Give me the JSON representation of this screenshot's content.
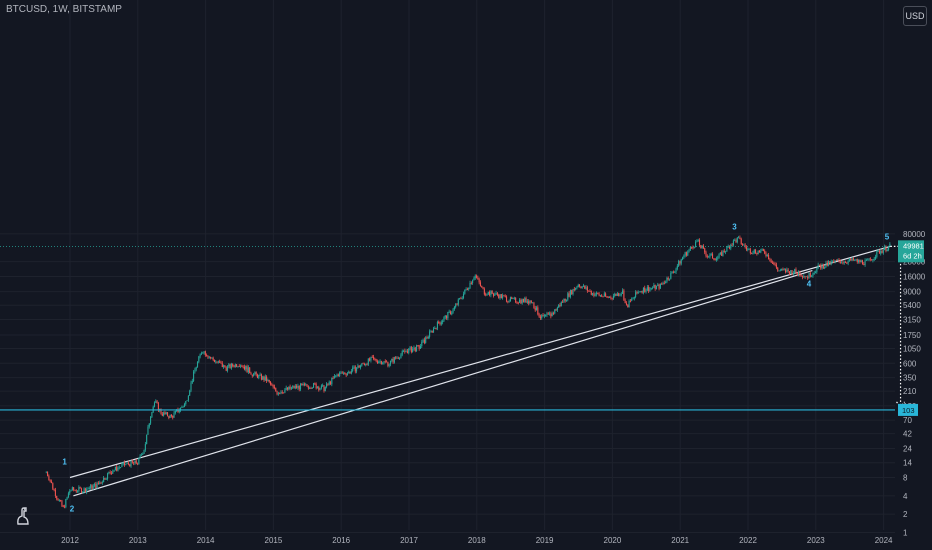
{
  "symbol": "BTCUSD, 1W, BITSTAMP",
  "currency_button": "USD",
  "colors": {
    "background": "#131722",
    "grid": "#1e222d",
    "up": "#26a69a",
    "down": "#ef5350",
    "price_line": "#26a69a",
    "target_line": "#29b6d8",
    "wave_label": "#4fc3f7",
    "channel": "#e0e3eb"
  },
  "chart_data": {
    "type": "candlestick",
    "y_scale": "log",
    "y_axis_labels": [
      "80000",
      "49981",
      "28000",
      "16000",
      "9000",
      "5400",
      "3150",
      "1750",
      "1050",
      "600",
      "350",
      "210",
      "120",
      "103",
      "70",
      "42",
      "24",
      "14",
      "8",
      "4",
      "2",
      "1"
    ],
    "x_axis_labels": [
      "2012",
      "2013",
      "2014",
      "2015",
      "2016",
      "2017",
      "2018",
      "2019",
      "2020",
      "2021",
      "2022",
      "2023",
      "2024"
    ],
    "last_price": {
      "value": "49981",
      "countdown": "6d 2h"
    },
    "target_price": {
      "value": "103"
    },
    "wave_labels": [
      {
        "label": "1",
        "date": "2011.92",
        "price": 13
      },
      {
        "label": "2",
        "date": "2012.03",
        "price": 2.2
      },
      {
        "label": "3",
        "date": "2021.80",
        "price": 95000
      },
      {
        "label": "4",
        "date": "2022.90",
        "price": 11000
      },
      {
        "label": "5",
        "date": "2024.05",
        "price": 65000
      }
    ],
    "channel_upper": [
      {
        "date": "2012.00",
        "price": 8
      },
      {
        "date": "2024.10",
        "price": 49981
      }
    ],
    "channel_lower": [
      {
        "date": "2012.05",
        "price": 4
      },
      {
        "date": "2022.95",
        "price": 20000
      }
    ],
    "price_path": [
      [
        "2011.65",
        10
      ],
      [
        "2011.80",
        4
      ],
      [
        "2011.90",
        2.5
      ],
      [
        "2012.00",
        5
      ],
      [
        "2012.20",
        5
      ],
      [
        "2012.40",
        6
      ],
      [
        "2012.60",
        10
      ],
      [
        "2012.80",
        13
      ],
      [
        "2013.00",
        14
      ],
      [
        "2013.10",
        25
      ],
      [
        "2013.20",
        100
      ],
      [
        "2013.25",
        140
      ],
      [
        "2013.35",
        90
      ],
      [
        "2013.50",
        80
      ],
      [
        "2013.70",
        130
      ],
      [
        "2013.85",
        500
      ],
      [
        "2013.95",
        1000
      ],
      [
        "2014.10",
        700
      ],
      [
        "2014.30",
        500
      ],
      [
        "2014.50",
        600
      ],
      [
        "2014.70",
        400
      ],
      [
        "2014.90",
        320
      ],
      [
        "2015.05",
        200
      ],
      [
        "2015.30",
        240
      ],
      [
        "2015.60",
        260
      ],
      [
        "2015.75",
        230
      ],
      [
        "2015.95",
        400
      ],
      [
        "2016.10",
        420
      ],
      [
        "2016.45",
        700
      ],
      [
        "2016.70",
        600
      ],
      [
        "2016.95",
        950
      ],
      [
        "2017.15",
        1100
      ],
      [
        "2017.40",
        2500
      ],
      [
        "2017.65",
        4500
      ],
      [
        "2017.85",
        10000
      ],
      [
        "2017.97",
        17000
      ],
      [
        "2018.10",
        9000
      ],
      [
        "2018.30",
        8000
      ],
      [
        "2018.50",
        6500
      ],
      [
        "2018.80",
        6400
      ],
      [
        "2018.95",
        3300
      ],
      [
        "2019.10",
        3800
      ],
      [
        "2019.35",
        8000
      ],
      [
        "2019.50",
        12000
      ],
      [
        "2019.70",
        8500
      ],
      [
        "2019.95",
        7200
      ],
      [
        "2020.15",
        9000
      ],
      [
        "2020.20",
        5000
      ],
      [
        "2020.40",
        9500
      ],
      [
        "2020.70",
        11000
      ],
      [
        "2020.90",
        19000
      ],
      [
        "2021.05",
        35000
      ],
      [
        "2021.25",
        60000
      ],
      [
        "2021.40",
        35000
      ],
      [
        "2021.55",
        32000
      ],
      [
        "2021.75",
        55000
      ],
      [
        "2021.85",
        66000
      ],
      [
        "2022.00",
        43000
      ],
      [
        "2022.25",
        40000
      ],
      [
        "2022.45",
        20000
      ],
      [
        "2022.70",
        19000
      ],
      [
        "2022.88",
        16000
      ],
      [
        "2023.05",
        23000
      ],
      [
        "2023.30",
        28000
      ],
      [
        "2023.55",
        29000
      ],
      [
        "2023.75",
        27000
      ],
      [
        "2023.95",
        42000
      ],
      [
        "2024.10",
        49981
      ]
    ]
  }
}
